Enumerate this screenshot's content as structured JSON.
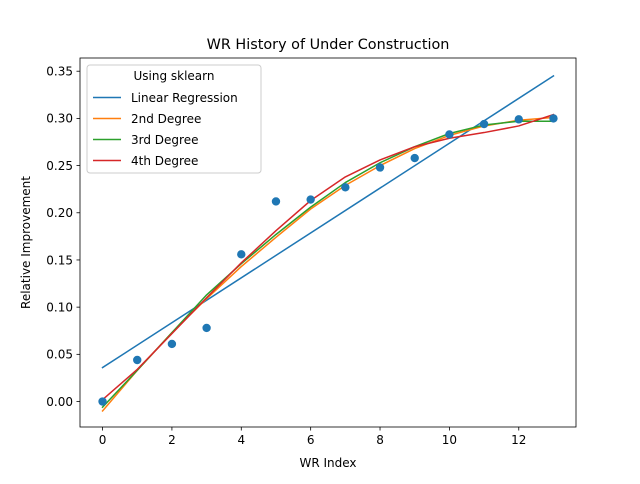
{
  "chart_data": {
    "type": "line",
    "title": "WR History of Under Construction",
    "xlabel": "WR Index",
    "ylabel": "Relative Improvement",
    "xlim": [
      -0.65,
      13.65
    ],
    "ylim": [
      -0.027,
      0.364
    ],
    "x_ticks": [
      0,
      2,
      4,
      6,
      8,
      10,
      12
    ],
    "x_tick_labels": [
      "0",
      "2",
      "4",
      "6",
      "8",
      "10",
      "12"
    ],
    "y_ticks": [
      0.0,
      0.05,
      0.1,
      0.15,
      0.2,
      0.25,
      0.3,
      0.35
    ],
    "y_tick_labels": [
      "0.00",
      "0.05",
      "0.10",
      "0.15",
      "0.20",
      "0.25",
      "0.30",
      "0.35"
    ],
    "grid": false,
    "legend": {
      "title": "Using sklearn",
      "position": "top-left"
    },
    "scatter": {
      "color": "#1f77b4",
      "x": [
        0,
        1,
        2,
        3,
        4,
        5,
        6,
        7,
        8,
        9,
        10,
        11,
        12,
        13
      ],
      "y": [
        0.0,
        0.044,
        0.061,
        0.078,
        0.156,
        0.212,
        0.214,
        0.227,
        0.248,
        0.258,
        0.283,
        0.294,
        0.299,
        0.3
      ]
    },
    "series": [
      {
        "name": "Linear Regression",
        "color": "#1f77b4",
        "x": [
          0,
          13
        ],
        "y": [
          0.036,
          0.345
        ]
      },
      {
        "name": "2nd Degree",
        "color": "#ff7f0e",
        "x": [
          0,
          1,
          2,
          3,
          4,
          5,
          6,
          7,
          8,
          9,
          10,
          11,
          12,
          13
        ],
        "y": [
          -0.01,
          0.033,
          0.073,
          0.109,
          0.143,
          0.174,
          0.204,
          0.229,
          0.25,
          0.268,
          0.282,
          0.292,
          0.298,
          0.301
        ]
      },
      {
        "name": "3rd Degree",
        "color": "#2ca02c",
        "x": [
          0,
          1,
          2,
          3,
          4,
          5,
          6,
          7,
          8,
          9,
          10,
          11,
          12,
          13
        ],
        "y": [
          -0.006,
          0.033,
          0.073,
          0.113,
          0.146,
          0.177,
          0.206,
          0.232,
          0.253,
          0.27,
          0.284,
          0.293,
          0.297,
          0.297
        ]
      },
      {
        "name": "4th Degree",
        "color": "#d62728",
        "x": [
          0,
          1,
          2,
          3,
          4,
          5,
          6,
          7,
          8,
          9,
          10,
          11,
          12,
          13
        ],
        "y": [
          0.002,
          0.034,
          0.072,
          0.11,
          0.147,
          0.181,
          0.213,
          0.238,
          0.256,
          0.27,
          0.279,
          0.285,
          0.292,
          0.304
        ]
      }
    ]
  }
}
